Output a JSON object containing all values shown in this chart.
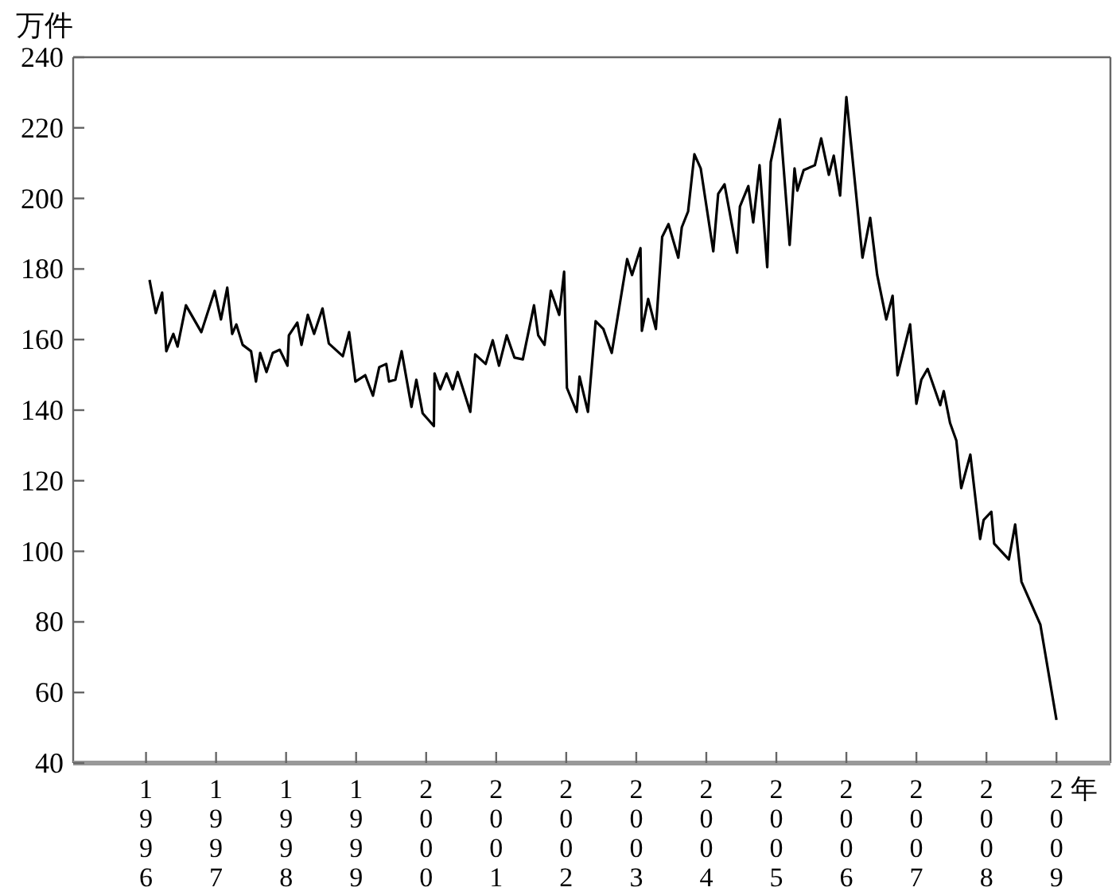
{
  "chart_data": {
    "type": "line",
    "ylabel": "万件",
    "xlabel": "年",
    "x": [
      1996.05,
      1996.14,
      1996.23,
      1996.29,
      1996.39,
      1996.45,
      1996.57,
      1996.79,
      1996.98,
      1997.07,
      1997.16,
      1997.23,
      1997.29,
      1997.38,
      1997.5,
      1997.57,
      1997.63,
      1997.72,
      1997.81,
      1997.91,
      1998.02,
      1998.04,
      1998.16,
      1998.22,
      1998.31,
      1998.4,
      1998.52,
      1998.61,
      1998.81,
      1998.9,
      1998.99,
      1999.13,
      1999.24,
      1999.33,
      1999.43,
      1999.47,
      1999.56,
      1999.65,
      1999.79,
      1999.86,
      1999.95,
      2000.11,
      2000.12,
      2000.2,
      2000.29,
      2000.38,
      2000.45,
      2000.63,
      2000.7,
      2000.85,
      2000.95,
      2001.04,
      2001.15,
      2001.26,
      2001.38,
      2001.54,
      2001.6,
      2001.69,
      2001.78,
      2001.9,
      2001.97,
      2002.01,
      2002.15,
      2002.19,
      2002.31,
      2002.42,
      2002.53,
      2002.65,
      2002.87,
      2002.94,
      2003.06,
      2003.08,
      2003.17,
      2003.28,
      2003.37,
      2003.46,
      2003.6,
      2003.65,
      2003.74,
      2003.83,
      2003.92,
      2004.1,
      2004.17,
      2004.26,
      2004.44,
      2004.48,
      2004.6,
      2004.67,
      2004.76,
      2004.87,
      2004.92,
      2005.05,
      2005.19,
      2005.26,
      2005.3,
      2005.39,
      2005.55,
      2005.64,
      2005.75,
      2005.82,
      2005.91,
      2006.0,
      2006.23,
      2006.34,
      2006.44,
      2006.57,
      2006.66,
      2006.73,
      2006.91,
      2007.0,
      2007.07,
      2007.16,
      2007.34,
      2007.39,
      2007.48,
      2007.57,
      2007.64,
      2007.77,
      2007.91,
      2007.96,
      2008.07,
      2008.11,
      2008.32,
      2008.41,
      2008.5,
      2008.77,
      2009.0
    ],
    "series": [
      {
        "color": "#000000",
        "values": [
          176.9,
          167.5,
          173.3,
          156.7,
          161.6,
          158.0,
          169.7,
          162.1,
          173.8,
          165.7,
          174.7,
          161.6,
          164.3,
          158.5,
          156.7,
          148.1,
          156.2,
          150.8,
          156.2,
          157.1,
          152.6,
          161.2,
          164.8,
          158.5,
          167.0,
          161.6,
          168.8,
          158.9,
          155.3,
          162.1,
          148.1,
          149.9,
          144.1,
          152.2,
          153.1,
          148.1,
          148.6,
          156.7,
          140.9,
          148.6,
          139.1,
          135.5,
          150.4,
          145.9,
          150.4,
          145.9,
          150.8,
          139.5,
          155.8,
          153.1,
          159.8,
          152.6,
          161.2,
          154.9,
          154.4,
          169.7,
          161.2,
          158.5,
          173.8,
          167.0,
          179.2,
          146.3,
          139.5,
          149.5,
          139.5,
          165.2,
          163.0,
          156.2,
          182.8,
          178.3,
          185.9,
          162.5,
          171.5,
          163.0,
          189.1,
          192.7,
          183.2,
          191.8,
          196.3,
          212.5,
          208.5,
          185.0,
          201.3,
          204.0,
          184.6,
          197.7,
          203.5,
          193.2,
          209.4,
          180.5,
          210.3,
          222.4,
          186.8,
          208.5,
          202.2,
          208.0,
          209.4,
          217.0,
          206.7,
          212.1,
          200.8,
          228.7,
          183.2,
          194.5,
          178.3,
          165.7,
          172.4,
          149.9,
          164.3,
          141.8,
          148.6,
          151.7,
          141.4,
          145.4,
          136.4,
          131.4,
          117.9,
          127.4,
          103.5,
          108.9,
          111.2,
          102.2,
          97.7,
          107.6,
          91.4,
          79.2,
          52.2
        ]
      }
    ],
    "xlim": [
      1994.96,
      2009.77
    ],
    "ylim": [
      40,
      240
    ],
    "xticks": [
      1996,
      1997,
      1998,
      1999,
      2000,
      2001,
      2002,
      2003,
      2004,
      2005,
      2006,
      2007,
      2008,
      2009
    ],
    "yticks": [
      40,
      60,
      80,
      100,
      120,
      140,
      160,
      180,
      200,
      220,
      240
    ],
    "grid": false
  }
}
